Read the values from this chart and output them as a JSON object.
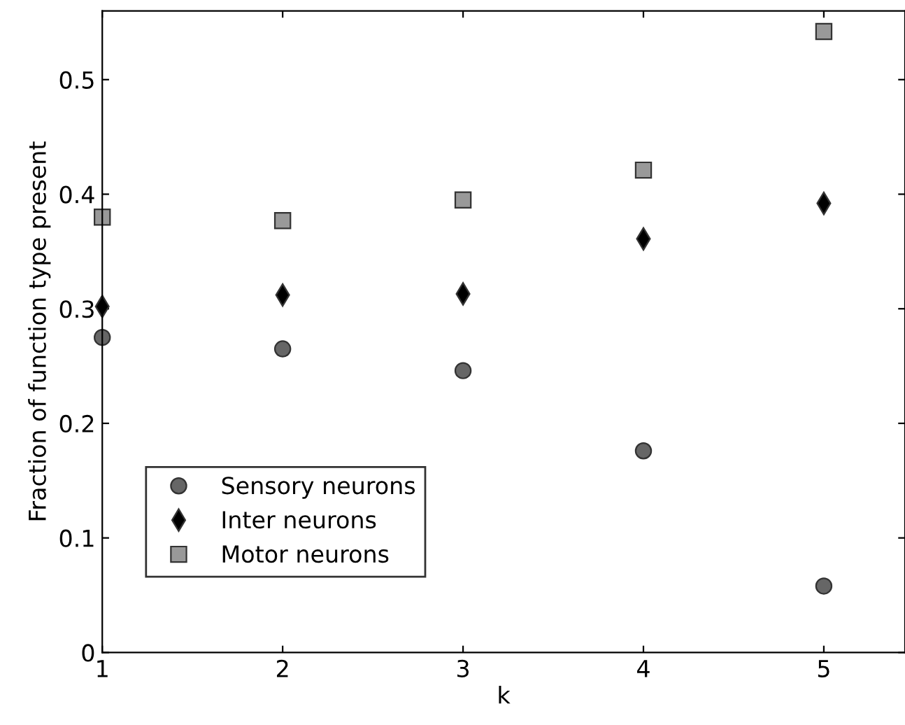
{
  "chart_data": {
    "type": "scatter",
    "xlabel": "k",
    "ylabel": "Fraction of function type present",
    "x": [
      1,
      2,
      3,
      4,
      5
    ],
    "xlim": [
      1,
      5.45
    ],
    "xticks": [
      1,
      2,
      3,
      4,
      5
    ],
    "ylim": [
      0,
      0.56
    ],
    "yticks": [
      0,
      0.1,
      0.2,
      0.3,
      0.4,
      0.5
    ],
    "legend": "bottom left",
    "grid": false,
    "series": [
      {
        "name": "Sensory neurons",
        "color": "#666666",
        "marker": "circle",
        "values": [
          0.275,
          0.265,
          0.246,
          0.176,
          0.058
        ]
      },
      {
        "name": "Inter neurons",
        "color": "#000000",
        "marker": "diamond",
        "values": [
          0.302,
          0.312,
          0.313,
          0.361,
          0.392
        ]
      },
      {
        "name": "Motor neurons",
        "color": "#999999",
        "marker": "square",
        "values": [
          0.38,
          0.377,
          0.395,
          0.421,
          0.542
        ]
      }
    ]
  }
}
